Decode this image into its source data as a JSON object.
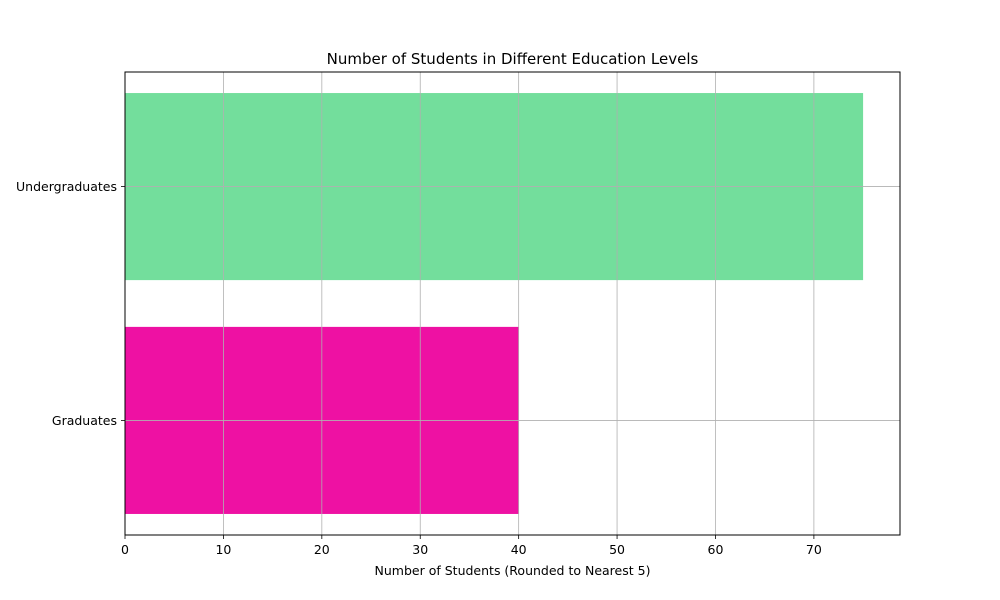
{
  "chart_data": {
    "type": "bar",
    "orientation": "horizontal",
    "title": "Number of Students in Different Education Levels",
    "xlabel": "Number of Students (Rounded to Nearest 5)",
    "ylabel": "",
    "categories": [
      "Graduates",
      "Undergraduates"
    ],
    "values": [
      40,
      75
    ],
    "colors": [
      "#ee11a3",
      "#73de9c"
    ],
    "xlim": [
      0,
      78.75
    ],
    "xticks": [
      0,
      10,
      20,
      30,
      40,
      50,
      60,
      70
    ],
    "grid": true,
    "legend": "none"
  }
}
